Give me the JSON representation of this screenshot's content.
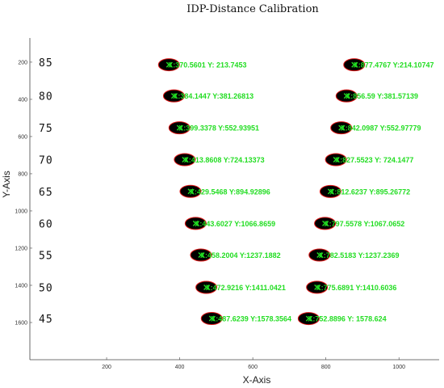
{
  "chart_data": {
    "type": "scatter",
    "title": "IDP-Distance Calibration",
    "xlabel": "X-Axis",
    "ylabel": "Y-Axis",
    "xlim": [
      -10,
      1110
    ],
    "ylim": [
      1800,
      70
    ],
    "y_inverted": true,
    "grid": false,
    "x_ticks": [
      200,
      400,
      600,
      800,
      1000
    ],
    "y_ticks": [
      200,
      400,
      600,
      800,
      1000,
      1200,
      1400,
      1600
    ],
    "row_labels": [
      "85",
      "80",
      "75",
      "70",
      "65",
      "60",
      "55",
      "50",
      "45"
    ],
    "row_label_y": [
      200,
      381,
      553,
      724,
      895,
      1067,
      1237,
      1411,
      1578
    ],
    "point_labels_left": [
      "X:370.5601 Y: 213.7453",
      "X:384.1447 Y:381.26813",
      "X:399.3378 Y:552.93951",
      "X:413.8608 Y:724.13373",
      "X:429.5468 Y:894.92896",
      "X:443.6027 Y:1066.8659",
      "X:458.2004 Y:1237.1882",
      "X:472.9216 Y:1411.0421",
      "X:487.6239 Y:1578.3564"
    ],
    "point_labels_right": [
      "X:877.4767 Y:214.10747",
      "X:856.59 Y:381.57139",
      "X:842.0987 Y:552.97779",
      "X:827.5523 Y: 724.1477",
      "X:812.6237 Y:895.26772",
      "X:797.5578 Y:1067.0652",
      "X:782.5183 Y:1237.2369",
      "X:775.6891 Y:1410.6036",
      "X:752.8896 Y: 1578.624"
    ],
    "series": [
      {
        "x": [
          370.5601,
          384.1447,
          399.3378,
          413.8608,
          429.5468,
          443.6027,
          458.2004,
          472.9216,
          487.6239
        ],
        "y": [
          213.7453,
          381.26813,
          552.93951,
          724.13373,
          894.92896,
          1066.8659,
          1237.1882,
          1411.0421,
          1578.3564
        ]
      },
      {
        "x": [
          877.4767,
          856.59,
          842.0987,
          827.5523,
          812.6237,
          797.5578,
          782.5183,
          775.6891,
          752.8896
        ],
        "y": [
          214.10747,
          381.57139,
          552.97779,
          724.1477,
          895.26772,
          1067.0652,
          1237.2369,
          1410.6036,
          1578.624
        ]
      }
    ],
    "marker_fill": "#000000",
    "marker_edge": "#e01818",
    "label_color": "#22dd22"
  }
}
